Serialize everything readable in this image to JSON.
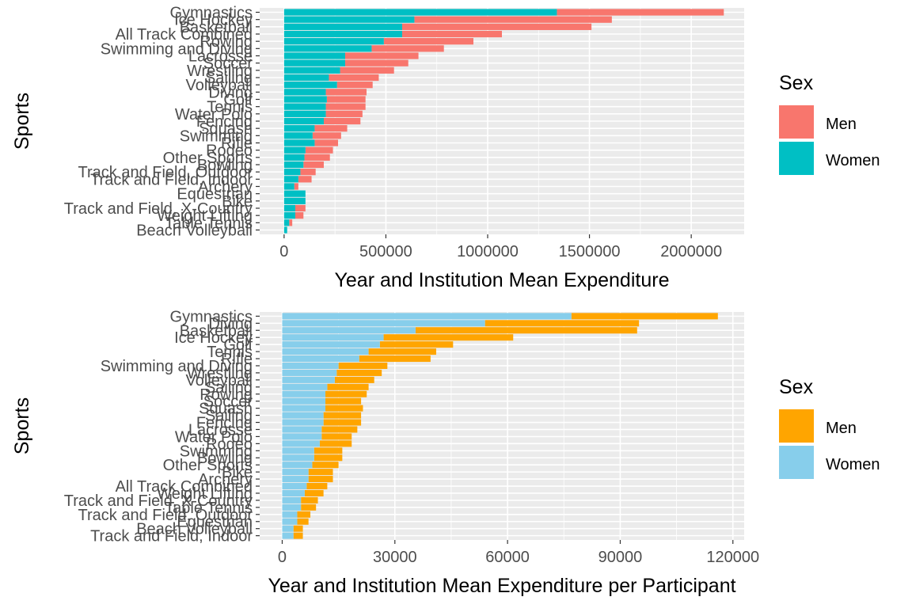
{
  "chart_data": [
    {
      "type": "bar",
      "orientation": "horizontal",
      "stacked": true,
      "ylabel": "Sports",
      "xlabel": "Year and Institution Mean Expenditure",
      "xlim": [
        -120000,
        2260000
      ],
      "xticks": [
        0,
        500000,
        1000000,
        1500000,
        2000000
      ],
      "xtick_labels": [
        "0",
        "500000",
        "1000000",
        "1500000",
        "2000000"
      ],
      "grid": true,
      "legend": {
        "title": "Sex",
        "position": "right"
      },
      "categories": [
        "Gymnastics",
        "Ice Hockey",
        "Basketball",
        "All Track Combined",
        "Rowing",
        "Swimming and Diving",
        "Lacrosse",
        "Soccer",
        "Wrestling",
        "Sailing",
        "Volleyball",
        "Diving",
        "Golf",
        "Tennis",
        "Water Polo",
        "Fencing",
        "Squash",
        "Swimming",
        "Rifle",
        "Rodeo",
        "Other Sports",
        "Bowling",
        "Track and Field, Outdoor",
        "Track and Field, Indoor",
        "Archery",
        "Equestrian",
        "Bike",
        "Track and Field, X-Country",
        "Weight Lifting",
        "Table Tennis",
        "Beach Volleyball"
      ],
      "series": [
        {
          "name": "Women",
          "color": "#00BFC4",
          "values": [
            1340000,
            640000,
            580000,
            580000,
            490000,
            430000,
            300000,
            300000,
            275000,
            220000,
            260000,
            205000,
            210000,
            205000,
            205000,
            195000,
            150000,
            140000,
            150000,
            105000,
            100000,
            95000,
            80000,
            70000,
            50000,
            105000,
            105000,
            55000,
            55000,
            25000,
            15000
          ]
        },
        {
          "name": "Men",
          "color": "#F8766D",
          "values": [
            820000,
            970000,
            930000,
            490000,
            440000,
            355000,
            360000,
            310000,
            265000,
            245000,
            175000,
            200000,
            190000,
            195000,
            180000,
            180000,
            160000,
            140000,
            115000,
            135000,
            125000,
            100000,
            75000,
            65000,
            20000,
            0,
            0,
            50000,
            40000,
            15000,
            0
          ]
        }
      ]
    },
    {
      "type": "bar",
      "orientation": "horizontal",
      "stacked": true,
      "ylabel": "Sports",
      "xlabel": "Year and Institution Mean Expenditure per Participant",
      "xlim": [
        -6000,
        123000
      ],
      "xticks": [
        0,
        30000,
        60000,
        90000,
        120000
      ],
      "xtick_labels": [
        "0",
        "30000",
        "60000",
        "90000",
        "120000"
      ],
      "grid": true,
      "legend": {
        "title": "Sex",
        "position": "right"
      },
      "categories": [
        "Gymnastics",
        "Diving",
        "Basketball",
        "Ice Hockey",
        "Golf",
        "Tennis",
        "Rifle",
        "Swimming and Diving",
        "Wrestling",
        "Volleyball",
        "Sailing",
        "Rowing",
        "Soccer",
        "Squash",
        "Sailing",
        "Fencing",
        "Lacrosse",
        "Water Polo",
        "Rodeo",
        "Swimming",
        "Bowling",
        "Other Sports",
        "Bike",
        "Archery",
        "All Track Combined",
        "Weight Lifting",
        "Track and Field, X-Country",
        "Table Tennis",
        "Track and Field, Outdoor",
        "Equestrian",
        "Beach Volleyball",
        "Track and Field, Indoor"
      ],
      "series": [
        {
          "name": "Women",
          "color": "#87CEEB",
          "values": [
            77000,
            54000,
            35500,
            27000,
            26000,
            23000,
            20500,
            15000,
            14500,
            14000,
            12000,
            11500,
            11500,
            11500,
            11000,
            11000,
            10500,
            10500,
            10000,
            8500,
            8500,
            8000,
            7000,
            7000,
            6500,
            6000,
            5000,
            5000,
            4000,
            4000,
            3000,
            3000
          ]
        },
        {
          "name": "Men",
          "color": "#FFA500",
          "values": [
            39000,
            41000,
            59000,
            34500,
            19500,
            18000,
            19000,
            13000,
            12000,
            10500,
            11000,
            11000,
            9500,
            10000,
            10000,
            10000,
            9500,
            8000,
            8500,
            7500,
            7500,
            7000,
            6500,
            6500,
            5500,
            5000,
            4500,
            4000,
            3500,
            3000,
            2500,
            2500
          ]
        }
      ]
    }
  ]
}
